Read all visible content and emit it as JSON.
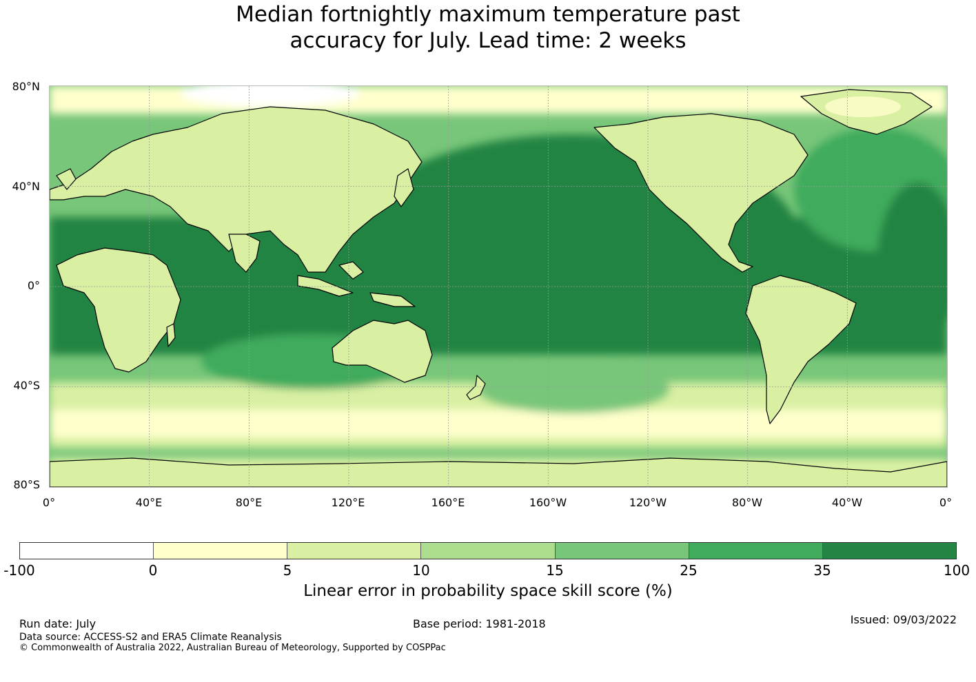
{
  "title": {
    "line1": "Median fortnightly maximum temperature past",
    "line2": "accuracy for July. Lead time: 2 weeks"
  },
  "map": {
    "lat_labels": [
      "80°N",
      "40°N",
      "0°",
      "40°S",
      "80°S"
    ],
    "lon_labels": [
      "0°",
      "40°E",
      "80°E",
      "120°E",
      "160°E",
      "160°W",
      "120°W",
      "80°W",
      "40°W",
      "0°"
    ],
    "legend_colors": {
      "ocean_high_skill": "#23843f",
      "land_low_skill": "#d6eda1",
      "gridline": "#9a9a9a",
      "coastline": "#000000"
    }
  },
  "colorbar": {
    "ticks": [
      "-100",
      "0",
      "5",
      "10",
      "15",
      "25",
      "35",
      "100"
    ],
    "colors": [
      "#ffffff",
      "#ffffcc",
      "#d9f0a3",
      "#addd8e",
      "#78c679",
      "#41ab5d",
      "#238443"
    ],
    "label": "Linear error in probability space skill score (%)"
  },
  "footer": {
    "run_date": "Run date: July",
    "base_period": "Base period: 1981-2018",
    "issued": "Issued: 09/03/2022",
    "data_source": "Data source: ACCESS-S2 and ERA5 Climate Reanalysis",
    "copyright": "© Commonwealth of Australia 2022, Australian Bureau of Meteorology, Supported by COSPPac"
  }
}
